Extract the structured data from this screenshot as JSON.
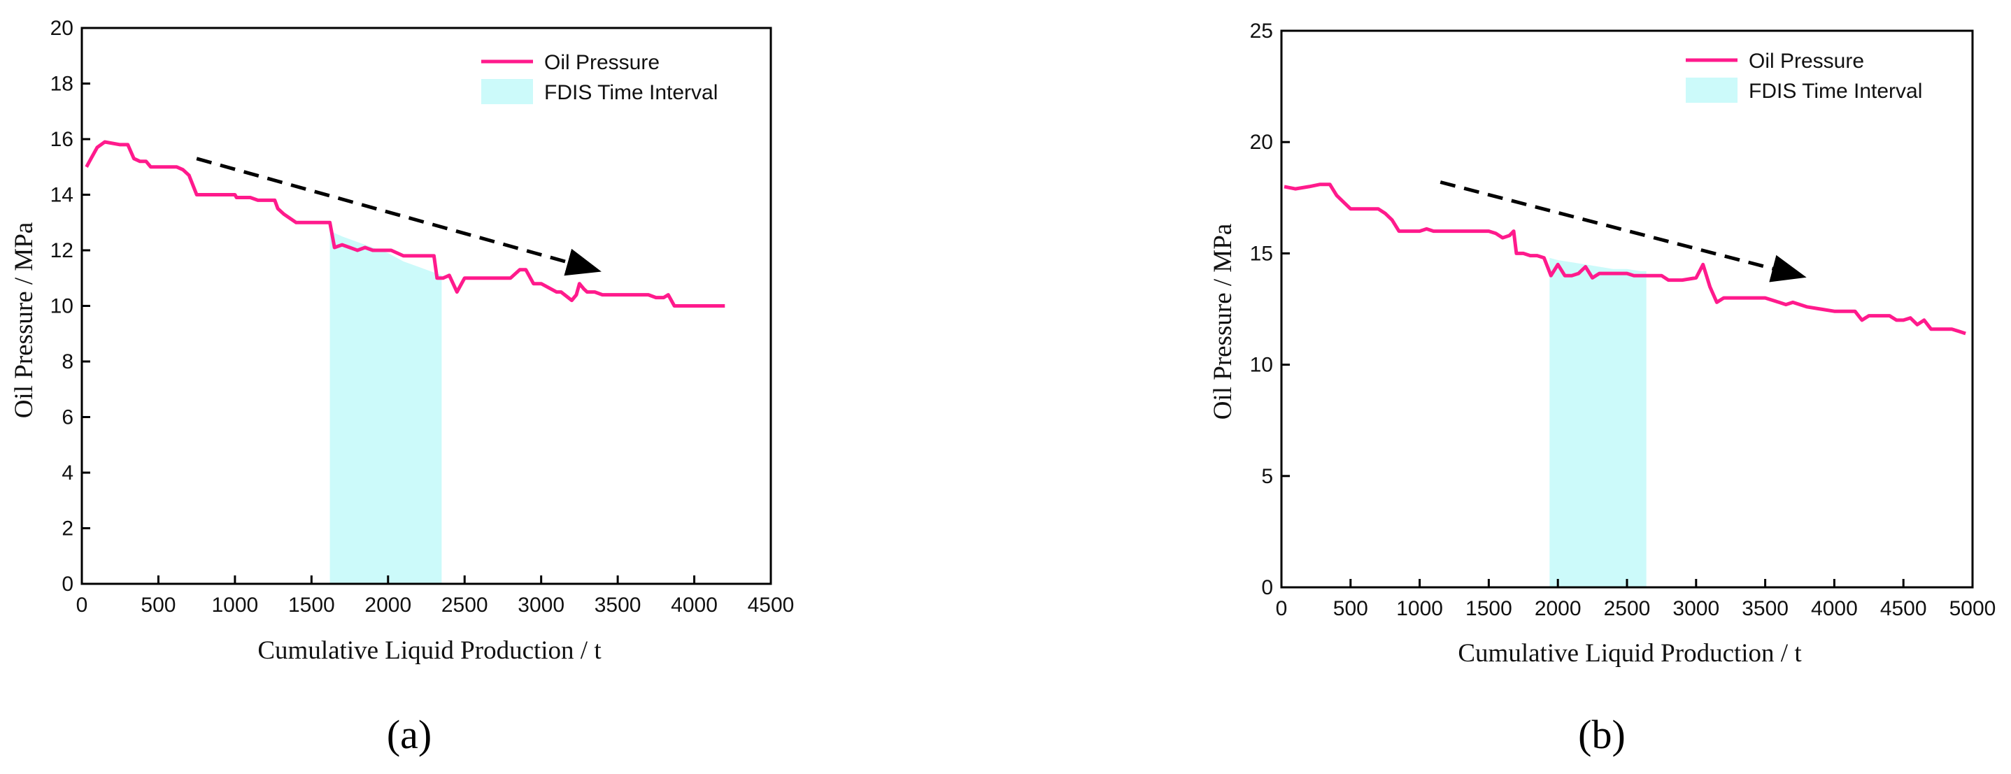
{
  "chart_data": [
    {
      "type": "line",
      "panel_label": "(a)",
      "xlabel": "Cumulative Liquid Production / t",
      "ylabel": "Oil Pressure / MPa",
      "xlim": [
        0,
        4500
      ],
      "ylim": [
        0,
        20
      ],
      "xticks": [
        0,
        500,
        1000,
        1500,
        2000,
        2500,
        3000,
        3500,
        4000,
        4500
      ],
      "yticks": [
        0,
        2,
        4,
        6,
        8,
        10,
        12,
        14,
        16,
        18,
        20
      ],
      "legend": {
        "position": "top-right",
        "entries": [
          "Oil Pressure",
          "FDIS Time Interval"
        ]
      },
      "grid": false,
      "colors": {
        "line": "#ff1a8c",
        "band": "#ccfafa",
        "arrow": "#000000"
      },
      "series": [
        {
          "name": "Oil Pressure",
          "x": [
            30,
            60,
            100,
            150,
            250,
            300,
            340,
            380,
            420,
            450,
            500,
            600,
            620,
            660,
            700,
            750,
            800,
            900,
            1000,
            1010,
            1050,
            1100,
            1150,
            1200,
            1260,
            1280,
            1320,
            1400,
            1500,
            1620,
            1650,
            1700,
            1750,
            1800,
            1850,
            1900,
            2000,
            2020,
            2100,
            2150,
            2200,
            2250,
            2300,
            2320,
            2360,
            2400,
            2450,
            2500,
            2600,
            2700,
            2800,
            2860,
            2900,
            2950,
            2970,
            3000,
            3100,
            3130,
            3200,
            3230,
            3250,
            3280,
            3300,
            3350,
            3400,
            3450,
            3500,
            3600,
            3700,
            3750,
            3800,
            3830,
            3870,
            4000,
            4100,
            4200
          ],
          "y": [
            15.0,
            15.3,
            15.7,
            15.9,
            15.8,
            15.8,
            15.3,
            15.2,
            15.2,
            15.0,
            15.0,
            15.0,
            15.0,
            14.9,
            14.7,
            14.0,
            14.0,
            14.0,
            14.0,
            13.9,
            13.9,
            13.9,
            13.8,
            13.8,
            13.8,
            13.5,
            13.3,
            13.0,
            13.0,
            13.0,
            12.1,
            12.2,
            12.1,
            12.0,
            12.1,
            12.0,
            12.0,
            12.0,
            11.8,
            11.8,
            11.8,
            11.8,
            11.8,
            11.0,
            11.0,
            11.1,
            10.5,
            11.0,
            11.0,
            11.0,
            11.0,
            11.3,
            11.3,
            10.8,
            10.8,
            10.8,
            10.5,
            10.5,
            10.2,
            10.4,
            10.8,
            10.6,
            10.5,
            10.5,
            10.4,
            10.4,
            10.4,
            10.4,
            10.4,
            10.3,
            10.3,
            10.4,
            10.0,
            10.0,
            10.0,
            10.0
          ]
        }
      ],
      "fdis_band": {
        "x": [
          1620,
          1700,
          1800,
          1900,
          2000,
          2100,
          2200,
          2300,
          2350
        ],
        "y": [
          12.7,
          12.5,
          12.3,
          12.1,
          11.9,
          11.6,
          11.4,
          11.2,
          11.1
        ],
        "x_start": 1620,
        "x_end": 2350
      },
      "trend_arrow": {
        "x_start": 750,
        "y_start": 15.3,
        "x_end": 3350,
        "y_end": 11.3
      }
    },
    {
      "type": "line",
      "panel_label": "(b)",
      "xlabel": "Cumulative Liquid Production / t",
      "ylabel": "Oil Pressure / MPa",
      "xlim": [
        0,
        5000
      ],
      "ylim": [
        0,
        25
      ],
      "xticks": [
        0,
        500,
        1000,
        1500,
        2000,
        2500,
        3000,
        3500,
        4000,
        4500,
        5000
      ],
      "yticks": [
        0,
        5,
        10,
        15,
        20,
        25
      ],
      "legend": {
        "position": "top-right",
        "entries": [
          "Oil Pressure",
          "FDIS Time Interval"
        ]
      },
      "grid": false,
      "colors": {
        "line": "#ff1a8c",
        "band": "#ccfafa",
        "arrow": "#000000"
      },
      "series": [
        {
          "name": "Oil Pressure",
          "x": [
            20,
            100,
            200,
            280,
            350,
            400,
            450,
            500,
            550,
            600,
            650,
            700,
            750,
            800,
            850,
            900,
            950,
            1000,
            1050,
            1100,
            1150,
            1200,
            1300,
            1400,
            1500,
            1550,
            1600,
            1650,
            1680,
            1700,
            1750,
            1800,
            1850,
            1900,
            1950,
            2000,
            2050,
            2100,
            2150,
            2200,
            2250,
            2300,
            2350,
            2400,
            2500,
            2550,
            2600,
            2700,
            2750,
            2800,
            2900,
            3000,
            3050,
            3100,
            3150,
            3200,
            3250,
            3300,
            3400,
            3500,
            3600,
            3650,
            3700,
            3800,
            3900,
            4000,
            4100,
            4150,
            4200,
            4250,
            4300,
            4400,
            4450,
            4500,
            4550,
            4600,
            4650,
            4700,
            4800,
            4850,
            4900,
            4950
          ],
          "y": [
            18.0,
            17.9,
            18.0,
            18.1,
            18.1,
            17.6,
            17.3,
            17.0,
            17.0,
            17.0,
            17.0,
            17.0,
            16.8,
            16.5,
            16.0,
            16.0,
            16.0,
            16.0,
            16.1,
            16.0,
            16.0,
            16.0,
            16.0,
            16.0,
            16.0,
            15.9,
            15.7,
            15.8,
            16.0,
            15.0,
            15.0,
            14.9,
            14.9,
            14.8,
            14.0,
            14.5,
            14.0,
            14.0,
            14.1,
            14.4,
            13.9,
            14.1,
            14.1,
            14.1,
            14.1,
            14.0,
            14.0,
            14.0,
            14.0,
            13.8,
            13.8,
            13.9,
            14.5,
            13.5,
            12.8,
            13.0,
            13.0,
            13.0,
            13.0,
            13.0,
            12.8,
            12.7,
            12.8,
            12.6,
            12.5,
            12.4,
            12.4,
            12.4,
            12.0,
            12.2,
            12.2,
            12.2,
            12.0,
            12.0,
            12.1,
            11.8,
            12.0,
            11.6,
            11.6,
            11.6,
            11.5,
            11.4
          ]
        }
      ],
      "fdis_band": {
        "x": [
          1940,
          2000,
          2100,
          2200,
          2300,
          2400,
          2500,
          2600,
          2640
        ],
        "y": [
          14.8,
          14.7,
          14.6,
          14.5,
          14.4,
          14.3,
          14.3,
          14.2,
          14.2
        ],
        "x_start": 1940,
        "x_end": 2640
      },
      "trend_arrow": {
        "x_start": 1150,
        "y_start": 18.2,
        "x_end": 3750,
        "y_end": 14.0
      }
    }
  ]
}
